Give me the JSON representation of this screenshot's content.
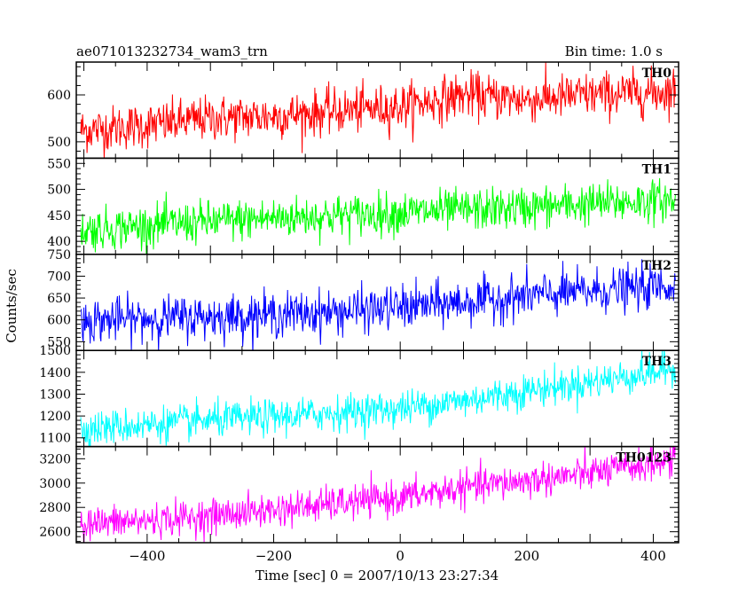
{
  "header": {
    "title": "ae071013232734_wam3_trn",
    "bin_time": "Bin time: 1.0 s"
  },
  "chart_data": {
    "type": "line",
    "title": "ae071013232734_wam3_trn",
    "subtitle": "Bin time: 1.0 s",
    "xlabel": "Time [sec] 0 = 2007/10/13 23:27:34",
    "ylabel": "Counts/sec",
    "xlim": [
      -512,
      440
    ],
    "x_ticks": [
      -400,
      -200,
      0,
      200,
      400
    ],
    "x_tick_labels": [
      "−400",
      "−200",
      "0",
      "200",
      "400"
    ],
    "data_x_range": [
      -505,
      435
    ],
    "bin_seconds": 1.0,
    "grid": false,
    "panels": [
      {
        "name": "TH0",
        "color": "#ff0000",
        "ylim": [
          465,
          670
        ],
        "y_ticks": [
          500,
          600
        ],
        "trend_start": 520,
        "trend_end": 610,
        "noise": 24,
        "points": [
          [
            -500,
            525
          ],
          [
            -400,
            535
          ],
          [
            -300,
            550
          ],
          [
            -200,
            555
          ],
          [
            -100,
            565
          ],
          [
            0,
            575
          ],
          [
            100,
            600
          ],
          [
            200,
            590
          ],
          [
            300,
            600
          ],
          [
            400,
            605
          ],
          [
            435,
            610
          ]
        ]
      },
      {
        "name": "TH1",
        "color": "#00ff00",
        "ylim": [
          375,
          560
        ],
        "y_ticks": [
          400,
          450,
          500,
          550
        ],
        "trend_start": 420,
        "trend_end": 480,
        "noise": 20,
        "points": [
          [
            -500,
            422
          ],
          [
            -400,
            430
          ],
          [
            -300,
            438
          ],
          [
            -200,
            445
          ],
          [
            -100,
            450
          ],
          [
            0,
            455
          ],
          [
            100,
            460
          ],
          [
            200,
            465
          ],
          [
            300,
            472
          ],
          [
            400,
            478
          ],
          [
            435,
            480
          ]
        ]
      },
      {
        "name": "TH2",
        "color": "#0000ff",
        "ylim": [
          530,
          750
        ],
        "y_ticks": [
          550,
          600,
          650,
          700,
          750
        ],
        "trend_start": 595,
        "trend_end": 680,
        "noise": 25,
        "points": [
          [
            -500,
            598
          ],
          [
            -400,
            603
          ],
          [
            -300,
            607
          ],
          [
            -200,
            612
          ],
          [
            -100,
            618
          ],
          [
            0,
            628
          ],
          [
            100,
            640
          ],
          [
            200,
            655
          ],
          [
            300,
            665
          ],
          [
            400,
            675
          ],
          [
            435,
            680
          ]
        ]
      },
      {
        "name": "TH3",
        "color": "#00ffff",
        "ylim": [
          1060,
          1500
        ],
        "y_ticks": [
          1100,
          1200,
          1300,
          1400,
          1500
        ],
        "trend_start": 1140,
        "trend_end": 1420,
        "noise": 40,
        "points": [
          [
            -500,
            1140
          ],
          [
            -400,
            1160
          ],
          [
            -300,
            1180
          ],
          [
            -200,
            1195
          ],
          [
            -100,
            1215
          ],
          [
            0,
            1235
          ],
          [
            100,
            1270
          ],
          [
            200,
            1315
          ],
          [
            300,
            1355
          ],
          [
            400,
            1400
          ],
          [
            435,
            1420
          ]
        ]
      },
      {
        "name": "TH0123",
        "color": "#ff00ff",
        "ylim": [
          2510,
          3300
        ],
        "y_ticks": [
          2600,
          2800,
          3000,
          3200
        ],
        "trend_start": 2660,
        "trend_end": 3200,
        "noise": 70,
        "points": [
          [
            -500,
            2665
          ],
          [
            -400,
            2690
          ],
          [
            -300,
            2730
          ],
          [
            -200,
            2780
          ],
          [
            -100,
            2830
          ],
          [
            0,
            2880
          ],
          [
            100,
            2960
          ],
          [
            200,
            3020
          ],
          [
            300,
            3080
          ],
          [
            400,
            3160
          ],
          [
            435,
            3200
          ]
        ]
      }
    ]
  }
}
